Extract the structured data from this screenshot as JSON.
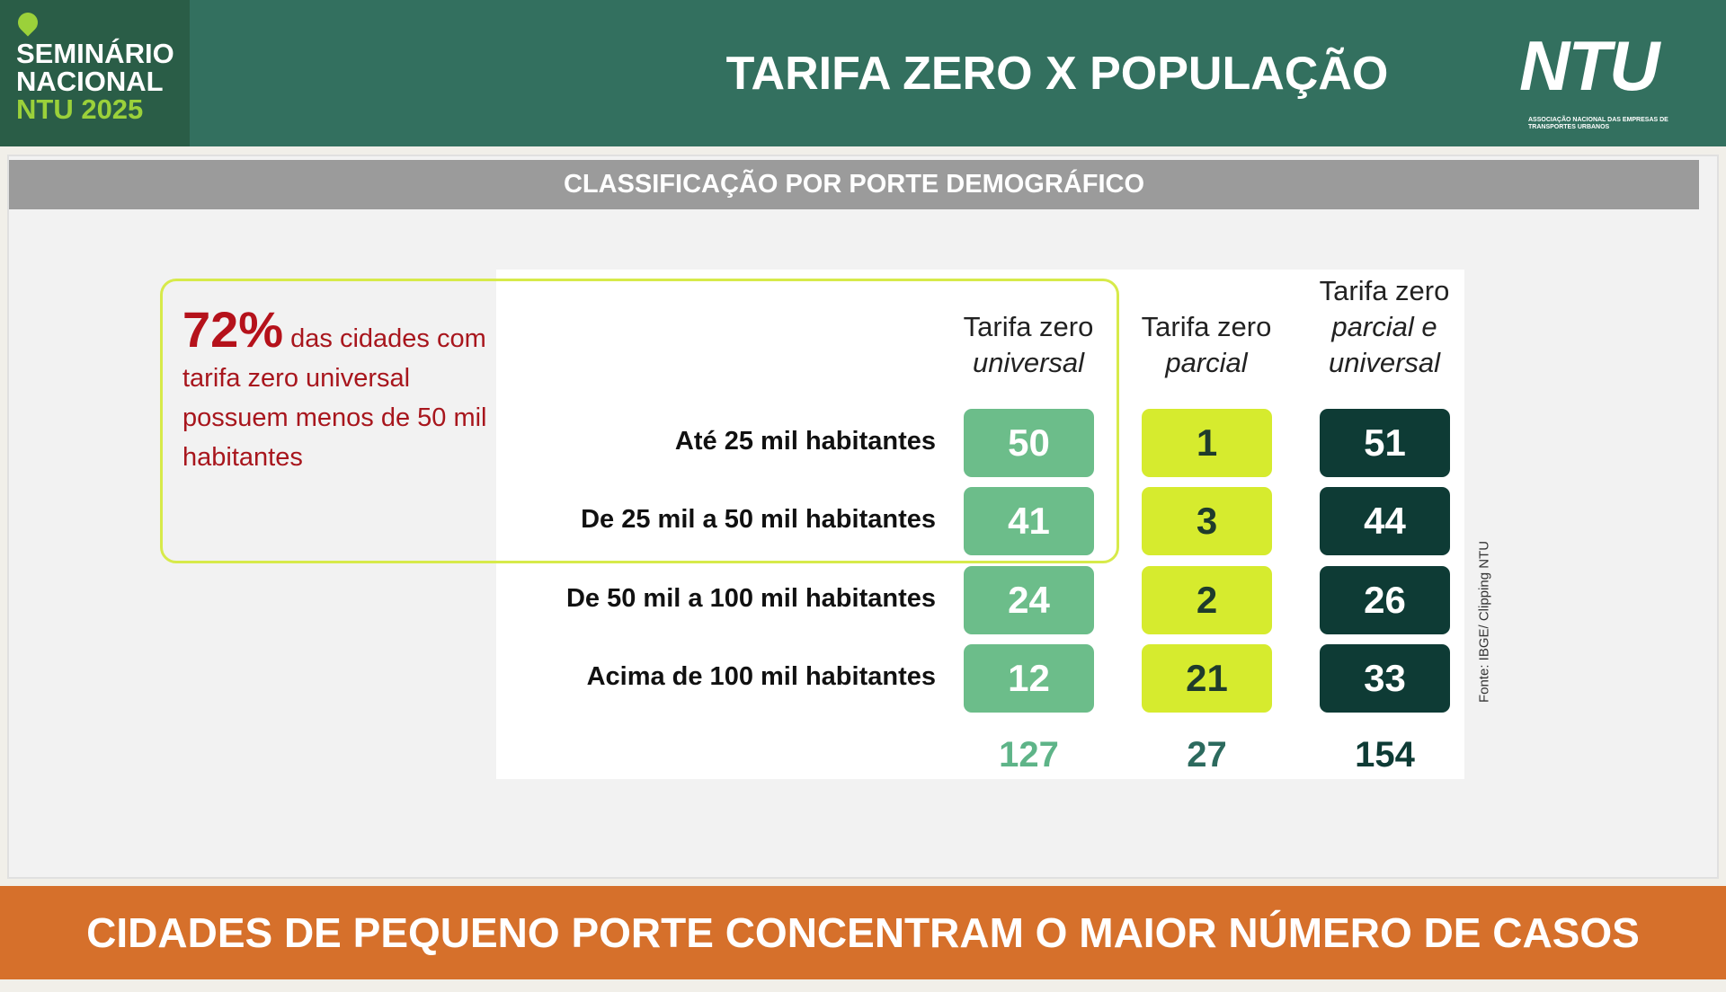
{
  "header": {
    "event_logo": [
      "SEMINÁRIO",
      "NACIONAL",
      "NTU 2025"
    ],
    "title": "TARIFA ZERO X POPULAÇÃO",
    "brand_logo": "NTU",
    "brand_tagline": "ASSOCIAÇÃO NACIONAL DAS EMPRESAS DE TRANSPORTES URBANOS"
  },
  "subtitle": "CLASSIFICAÇÃO POR PORTE DEMOGRÁFICO",
  "callout": {
    "highlight": "72%",
    "text": "das cidades com tarifa zero universal possuem menos de 50 mil habitantes"
  },
  "table": {
    "columns": [
      [
        "Tarifa zero",
        "universal"
      ],
      [
        "Tarifa zero",
        "parcial"
      ],
      [
        "Tarifa zero",
        "parcial e",
        "universal"
      ]
    ],
    "rows": [
      {
        "label": "Até 25 mil habitantes",
        "values": [
          50,
          1,
          51
        ]
      },
      {
        "label": "De 25 mil a 50 mil habitantes",
        "values": [
          41,
          3,
          44
        ]
      },
      {
        "label": "De 50 mil a 100 mil habitantes",
        "values": [
          24,
          2,
          26
        ]
      },
      {
        "label": "Acima de 100 mil habitantes",
        "values": [
          12,
          21,
          33
        ]
      }
    ],
    "totals": [
      127,
      27,
      154
    ]
  },
  "source": "Fonte: IBGE/ Clipping NTU",
  "footer": "CIDADES DE PEQUENO PORTE CONCENTRAM O MAIOR NÚMERO DE CASOS"
}
